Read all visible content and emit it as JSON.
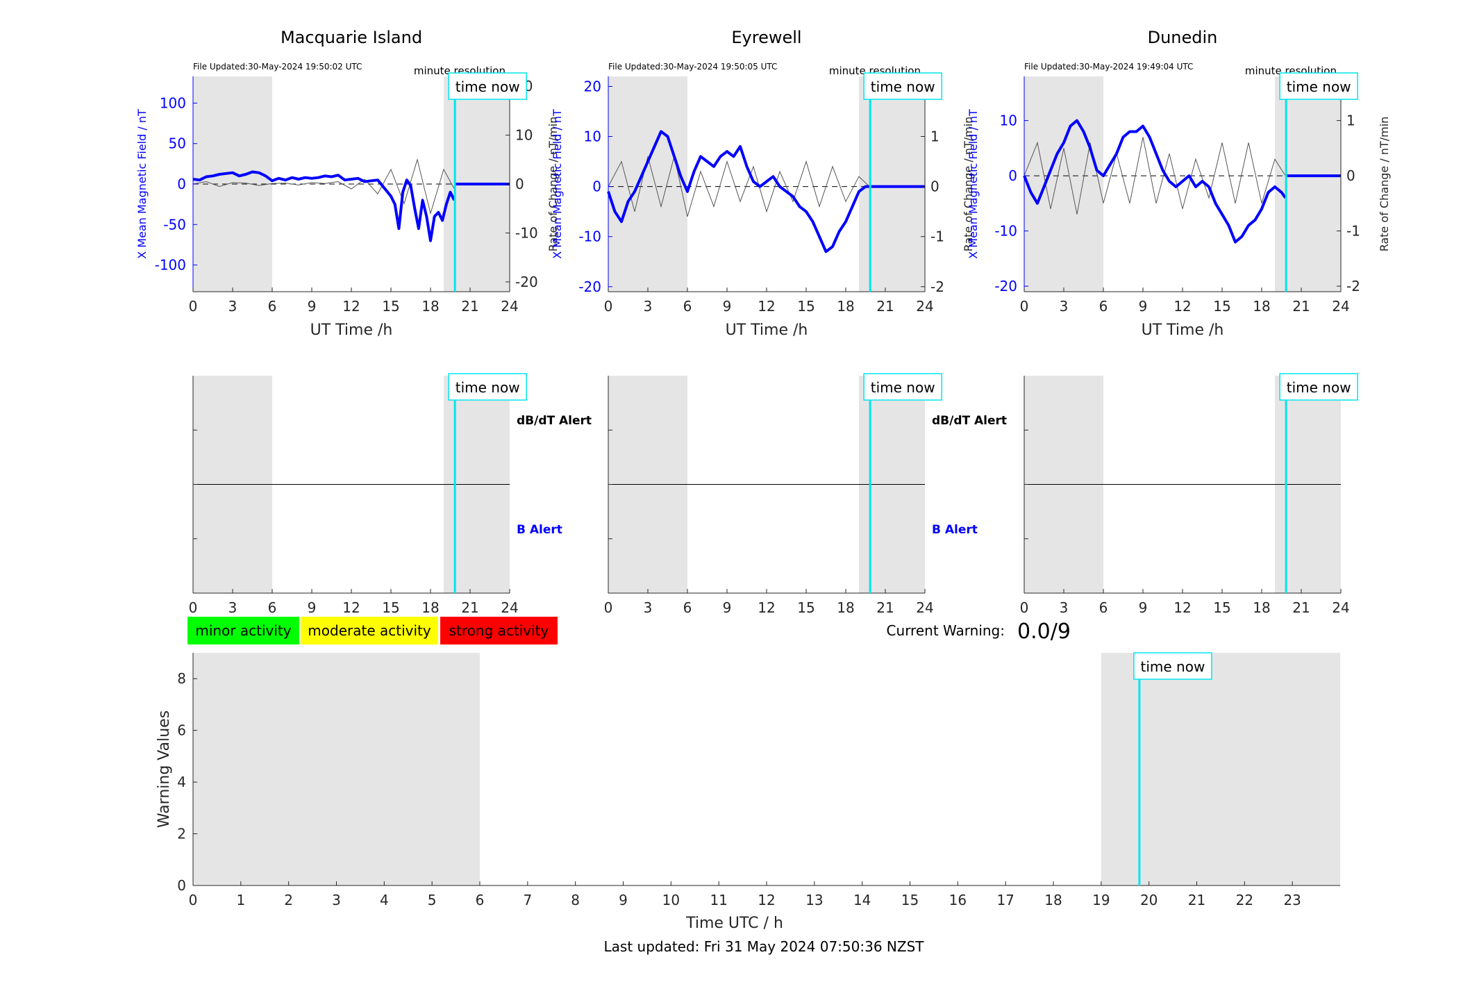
{
  "figure": {
    "current_warning_label": "Current Warning:",
    "current_warning_value": "0.0/9",
    "last_updated": "Last updated: Fri 31 May 2024 07:50:36 NZST",
    "time_now_label": "time now",
    "minute_resolution_label": "minute resolution",
    "dbdt_alert_label": "dB/dT Alert",
    "b_alert_label": "B Alert",
    "legend": [
      {
        "label": "minor activity",
        "color": "#00ff00"
      },
      {
        "label": "moderate activity",
        "color": "#ffff00"
      },
      {
        "label": "strong activity",
        "color": "#ff0000"
      }
    ],
    "colors": {
      "field": "#0000ff",
      "rate": "#555555",
      "time_now": "#00e5ee",
      "shade": "#e5e5e5"
    }
  },
  "chart_data": [
    {
      "type": "line",
      "title": "Macquarie Island",
      "file_updated": "File Updated:30-May-2024 19:50:02 UTC",
      "xlabel": "UT Time /h",
      "ylabel_left": "X Mean Magnetic Field / nT",
      "ylabel_right": "Rate of Change / nT/min",
      "xlim": [
        0,
        24
      ],
      "xticks": [
        0,
        3,
        6,
        9,
        12,
        15,
        18,
        21,
        24
      ],
      "ylim_left": [
        -133,
        133
      ],
      "yticks_left": [
        -100,
        -50,
        0,
        50,
        100
      ],
      "ylim_right": [
        -22,
        22
      ],
      "yticks_right": [
        -20,
        -10,
        0,
        10,
        20
      ],
      "shaded_x": [
        [
          0,
          6
        ],
        [
          19,
          24
        ]
      ],
      "time_now": 19.85,
      "series": [
        {
          "axis": "left",
          "x": [
            0,
            0.5,
            1,
            1.5,
            2,
            2.5,
            3,
            3.5,
            4,
            4.5,
            5,
            5.5,
            6,
            6.5,
            7,
            7.5,
            8,
            8.5,
            9,
            9.5,
            10,
            10.5,
            11,
            11.5,
            12,
            12.5,
            13,
            13.5,
            14,
            14.5,
            15,
            15.3,
            15.6,
            15.9,
            16.2,
            16.5,
            16.8,
            17.1,
            17.4,
            17.7,
            18,
            18.3,
            18.6,
            18.9,
            19.2,
            19.5,
            19.8
          ],
          "y": [
            6,
            5,
            9,
            10,
            12,
            13,
            14,
            10,
            12,
            15,
            14,
            10,
            4,
            7,
            5,
            8,
            6,
            8,
            7,
            8,
            10,
            9,
            11,
            5,
            6,
            7,
            3,
            4,
            5,
            -5,
            -15,
            -25,
            -55,
            -10,
            5,
            -2,
            -30,
            -55,
            -20,
            -40,
            -70,
            -40,
            -35,
            -45,
            -25,
            -10,
            -20
          ]
        },
        {
          "axis": "right",
          "x": [
            0,
            1,
            2,
            3,
            4,
            5,
            6,
            7,
            8,
            9,
            10,
            11,
            12,
            13,
            14,
            15,
            16,
            17,
            18,
            19,
            19.8
          ],
          "y": [
            0,
            0.5,
            -0.5,
            0.3,
            0.2,
            -0.3,
            0.1,
            0.2,
            -0.2,
            0.3,
            0.1,
            0.5,
            -1,
            1,
            -2,
            3,
            -4,
            5,
            -6,
            3,
            -1
          ]
        }
      ]
    },
    {
      "type": "line",
      "title": "Eyrewell",
      "file_updated": "File Updated:30-May-2024 19:50:05 UTC",
      "xlabel": "UT Time /h",
      "ylabel_left": "X Mean Magnetic Field / nT",
      "ylabel_right": "Rate of Change / nT/min",
      "xlim": [
        0,
        24
      ],
      "xticks": [
        0,
        3,
        6,
        9,
        12,
        15,
        18,
        21,
        24
      ],
      "ylim_left": [
        -21,
        22
      ],
      "yticks_left": [
        -20,
        -10,
        0,
        10,
        20
      ],
      "ylim_right": [
        -2.1,
        2.2
      ],
      "yticks_right": [
        -2,
        -1,
        0,
        1,
        2
      ],
      "shaded_x": [
        [
          0,
          6
        ],
        [
          19,
          24
        ]
      ],
      "time_now": 19.85,
      "series": [
        {
          "axis": "left",
          "x": [
            0,
            0.5,
            1,
            1.5,
            2,
            2.5,
            3,
            3.5,
            4,
            4.5,
            5,
            5.5,
            6,
            6.5,
            7,
            7.5,
            8,
            8.5,
            9,
            9.5,
            10,
            10.5,
            11,
            11.5,
            12,
            12.5,
            13,
            13.5,
            14,
            14.5,
            15,
            15.5,
            16,
            16.5,
            17,
            17.5,
            18,
            18.5,
            19,
            19.5,
            19.8
          ],
          "y": [
            -1,
            -5,
            -7,
            -3,
            -1,
            2,
            5,
            8,
            11,
            10,
            6,
            2,
            -1,
            3,
            6,
            5,
            4,
            6,
            7,
            6,
            8,
            4,
            1,
            0,
            1,
            2,
            0,
            -1,
            -2,
            -4,
            -5,
            -7,
            -10,
            -13,
            -12,
            -9,
            -7,
            -4,
            -1,
            0,
            0
          ]
        },
        {
          "axis": "right",
          "x": [
            0,
            1,
            2,
            3,
            4,
            5,
            6,
            7,
            8,
            9,
            10,
            11,
            12,
            13,
            14,
            15,
            16,
            17,
            18,
            19,
            19.8
          ],
          "y": [
            0,
            0.5,
            -0.5,
            0.6,
            -0.4,
            0.6,
            -0.6,
            0.3,
            -0.4,
            0.5,
            -0.3,
            0.4,
            -0.5,
            0.3,
            -0.3,
            0.5,
            -0.4,
            0.4,
            -0.3,
            0.2,
            0
          ]
        }
      ]
    },
    {
      "type": "line",
      "title": "Dunedin",
      "file_updated": "File Updated:30-May-2024 19:49:04 UTC",
      "xlabel": "UT Time /h",
      "ylabel_left": "X Mean Magnetic Field / nT",
      "ylabel_right": "Rate of Change / nT/min",
      "xlim": [
        0,
        24
      ],
      "xticks": [
        0,
        3,
        6,
        9,
        12,
        15,
        18,
        21,
        24
      ],
      "ylim_left": [
        -21,
        18
      ],
      "yticks_left": [
        -20,
        -10,
        0,
        10
      ],
      "ylim_right": [
        -2.1,
        1.8
      ],
      "yticks_right": [
        -2,
        -1,
        0,
        1
      ],
      "shaded_x": [
        [
          0,
          6
        ],
        [
          19,
          24
        ]
      ],
      "time_now": 19.85,
      "series": [
        {
          "axis": "left",
          "x": [
            0,
            0.5,
            1,
            1.5,
            2,
            2.5,
            3,
            3.5,
            4,
            4.5,
            5,
            5.5,
            6,
            6.5,
            7,
            7.5,
            8,
            8.5,
            9,
            9.5,
            10,
            10.5,
            11,
            11.5,
            12,
            12.5,
            13,
            13.5,
            14,
            14.5,
            15,
            15.5,
            16,
            16.5,
            17,
            17.5,
            18,
            18.5,
            19,
            19.5,
            19.8
          ],
          "y": [
            0,
            -3,
            -5,
            -2,
            1,
            4,
            6,
            9,
            10,
            8,
            5,
            1,
            0,
            2,
            4,
            7,
            8,
            8,
            9,
            7,
            4,
            1,
            -1,
            -2,
            -1,
            0,
            -2,
            -1,
            -2,
            -5,
            -7,
            -9,
            -12,
            -11,
            -9,
            -8,
            -6,
            -3,
            -2,
            -3,
            -4
          ]
        },
        {
          "axis": "right",
          "x": [
            0,
            1,
            2,
            3,
            4,
            5,
            6,
            7,
            8,
            9,
            10,
            11,
            12,
            13,
            14,
            15,
            16,
            17,
            18,
            19,
            19.8
          ],
          "y": [
            0,
            0.6,
            -0.6,
            0.5,
            -0.7,
            0.6,
            -0.5,
            0.4,
            -0.5,
            0.7,
            -0.5,
            0.4,
            -0.6,
            0.3,
            -0.4,
            0.6,
            -0.5,
            0.6,
            -0.5,
            0.3,
            0
          ]
        }
      ]
    },
    {
      "type": "line",
      "title": "",
      "xlabel": "",
      "xlim": [
        0,
        24
      ],
      "xticks": [
        0,
        3,
        6,
        9,
        12,
        15,
        18,
        21,
        24
      ],
      "ylim": [
        0,
        1
      ],
      "shaded_x": [
        [
          0,
          6
        ],
        [
          19,
          24
        ]
      ],
      "time_now": 19.85,
      "series": []
    },
    {
      "type": "line",
      "title": "",
      "xlabel": "",
      "xlim": [
        0,
        24
      ],
      "xticks": [
        0,
        3,
        6,
        9,
        12,
        15,
        18,
        21,
        24
      ],
      "ylim": [
        0,
        1
      ],
      "shaded_x": [
        [
          0,
          6
        ],
        [
          19,
          24
        ]
      ],
      "time_now": 19.85,
      "series": []
    },
    {
      "type": "line",
      "title": "",
      "xlabel": "",
      "xlim": [
        0,
        24
      ],
      "xticks": [
        0,
        3,
        6,
        9,
        12,
        15,
        18,
        21,
        24
      ],
      "ylim": [
        0,
        1
      ],
      "shaded_x": [
        [
          0,
          6
        ],
        [
          19,
          24
        ]
      ],
      "time_now": 19.85,
      "series": []
    },
    {
      "type": "bar",
      "title": "",
      "xlabel": "Time UTC / h",
      "ylabel": "Warning Values",
      "xlim": [
        0,
        24
      ],
      "xticks": [
        0,
        1,
        2,
        3,
        4,
        5,
        6,
        7,
        8,
        9,
        10,
        11,
        12,
        13,
        14,
        15,
        16,
        17,
        18,
        19,
        20,
        21,
        22,
        23
      ],
      "ylim": [
        0,
        9
      ],
      "yticks": [
        0,
        2,
        4,
        6,
        8
      ],
      "shaded_x": [
        [
          0,
          6
        ],
        [
          19,
          24
        ]
      ],
      "time_now": 19.8,
      "series": []
    }
  ]
}
